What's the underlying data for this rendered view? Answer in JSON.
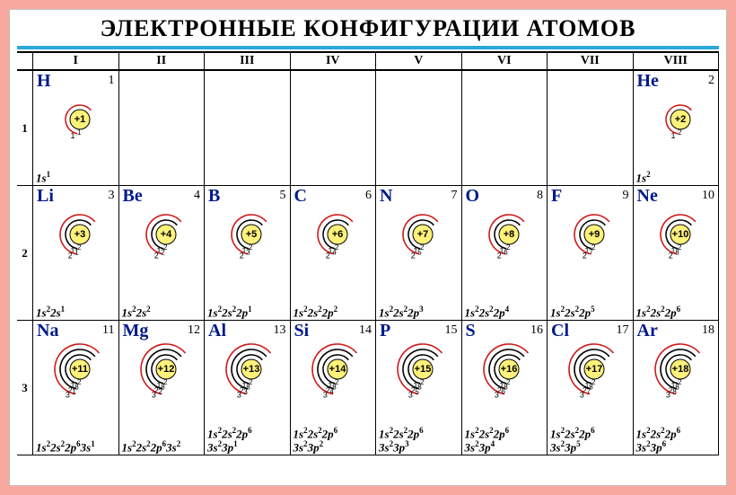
{
  "title": "ЭЛЕКТРОННЫЕ  КОНФИГУРАЦИИ  АТОМОВ",
  "title_fontsize": 26,
  "title_color": "#000000",
  "ruler_color": "#2aa8d8",
  "background_color": "#f9a8a0",
  "card_bg": "#ffffff",
  "nucleus_fill": "#fff27a",
  "nucleus_stroke": "#000000",
  "shell_black": "#000000",
  "shell_red": "#d01818",
  "symbol_color": "#001a8a",
  "columns": [
    "I",
    "II",
    "III",
    "IV",
    "V",
    "VI",
    "VII",
    "VIII"
  ],
  "rows": [
    "1",
    "2",
    "3"
  ],
  "elements": [
    [
      {
        "sym": "H",
        "num": "1",
        "z": "+1",
        "shells": [
          1
        ],
        "conf": "1s^1"
      },
      null,
      null,
      null,
      null,
      null,
      null,
      {
        "sym": "He",
        "num": "2",
        "z": "+2",
        "shells": [
          2
        ],
        "conf": "1s^2"
      }
    ],
    [
      {
        "sym": "Li",
        "num": "3",
        "z": "+3",
        "shells": [
          2,
          1
        ],
        "conf": "1s^2 2s^1"
      },
      {
        "sym": "Be",
        "num": "4",
        "z": "+4",
        "shells": [
          2,
          2
        ],
        "conf": "1s^2 2s^2"
      },
      {
        "sym": "B",
        "num": "5",
        "z": "+5",
        "shells": [
          2,
          3
        ],
        "conf": "1s^2 2s^2 2p^1"
      },
      {
        "sym": "C",
        "num": "6",
        "z": "+6",
        "shells": [
          2,
          4
        ],
        "conf": "1s^2 2s^2 2p^2"
      },
      {
        "sym": "N",
        "num": "7",
        "z": "+7",
        "shells": [
          2,
          5
        ],
        "conf": "1s^2 2s^2 2p^3"
      },
      {
        "sym": "O",
        "num": "8",
        "z": "+8",
        "shells": [
          2,
          6
        ],
        "conf": "1s^2 2s^2 2p^4"
      },
      {
        "sym": "F",
        "num": "9",
        "z": "+9",
        "shells": [
          2,
          7
        ],
        "conf": "1s^2 2s^2 2p^5"
      },
      {
        "sym": "Ne",
        "num": "10",
        "z": "+10",
        "shells": [
          2,
          8
        ],
        "conf": "1s^2 2s^2 2p^6"
      }
    ],
    [
      {
        "sym": "Na",
        "num": "11",
        "z": "+11",
        "shells": [
          2,
          8,
          1
        ],
        "conf": "1s^2 2s^2 2p^6 3s^1"
      },
      {
        "sym": "Mg",
        "num": "12",
        "z": "+12",
        "shells": [
          2,
          8,
          2
        ],
        "conf": "1s^2 2s^2 2p^6 3s^2"
      },
      {
        "sym": "Al",
        "num": "13",
        "z": "+13",
        "shells": [
          2,
          8,
          3
        ],
        "conf": "1s^2 2s^2 2p^6 3s^2 3p^1"
      },
      {
        "sym": "Si",
        "num": "14",
        "z": "+14",
        "shells": [
          2,
          8,
          4
        ],
        "conf": "1s^2 2s^2 2p^6 3s^2 3p^2"
      },
      {
        "sym": "P",
        "num": "15",
        "z": "+15",
        "shells": [
          2,
          8,
          5
        ],
        "conf": "1s^2 2s^2 2p^6 3s^2 3p^3"
      },
      {
        "sym": "S",
        "num": "16",
        "z": "+16",
        "shells": [
          2,
          8,
          6
        ],
        "conf": "1s^2 2s^2 2p^6 3s^2 3p^4"
      },
      {
        "sym": "Cl",
        "num": "17",
        "z": "+17",
        "shells": [
          2,
          8,
          7
        ],
        "conf": "1s^2 2s^2 2p^6 3s^2 3p^5"
      },
      {
        "sym": "Ar",
        "num": "18",
        "z": "+18",
        "shells": [
          2,
          8,
          8
        ],
        "conf": "1s^2 2s^2 2p^6 3s^2 3p^6"
      }
    ]
  ]
}
